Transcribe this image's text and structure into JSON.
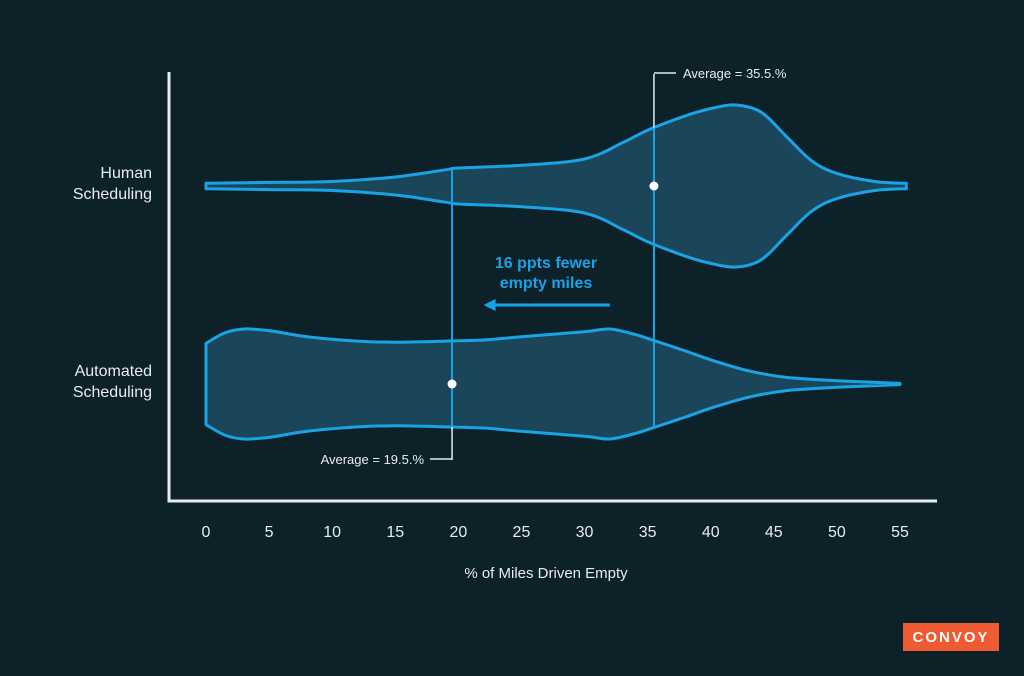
{
  "chart_data": {
    "type": "violin",
    "xlabel": "% of Miles Driven Empty",
    "xlim": [
      0,
      55
    ],
    "x_ticks": [
      0,
      5,
      10,
      15,
      20,
      25,
      30,
      35,
      40,
      45,
      50,
      55
    ],
    "categories": [
      {
        "name": "Human",
        "name2": "Scheduling",
        "average": 35.5,
        "average_label": "Average = 35.5.%",
        "min": 0,
        "max": 55.5,
        "density": [
          [
            0,
            0.03
          ],
          [
            5,
            0.04
          ],
          [
            10,
            0.05
          ],
          [
            15,
            0.1
          ],
          [
            19,
            0.18
          ],
          [
            20,
            0.2
          ],
          [
            25,
            0.23
          ],
          [
            30,
            0.3
          ],
          [
            33,
            0.48
          ],
          [
            35,
            0.62
          ],
          [
            38,
            0.78
          ],
          [
            40,
            0.86
          ],
          [
            42,
            0.9
          ],
          [
            44,
            0.82
          ],
          [
            46,
            0.55
          ],
          [
            48,
            0.28
          ],
          [
            50,
            0.14
          ],
          [
            53,
            0.05
          ],
          [
            55.5,
            0.03
          ]
        ]
      },
      {
        "name": "Automated",
        "name2": "Scheduling",
        "average": 19.5,
        "average_label": "Average = 19.5.%",
        "min": 0,
        "max": 55.5,
        "density": [
          [
            0,
            0.74
          ],
          [
            1.5,
            0.93
          ],
          [
            3,
            1.0
          ],
          [
            5,
            0.97
          ],
          [
            8,
            0.86
          ],
          [
            12,
            0.78
          ],
          [
            15,
            0.76
          ],
          [
            19,
            0.78
          ],
          [
            22,
            0.8
          ],
          [
            25,
            0.86
          ],
          [
            30,
            0.95
          ],
          [
            32,
            1.0
          ],
          [
            34,
            0.9
          ],
          [
            35,
            0.83
          ],
          [
            38,
            0.6
          ],
          [
            40,
            0.44
          ],
          [
            43,
            0.24
          ],
          [
            46,
            0.12
          ],
          [
            50,
            0.06
          ],
          [
            55,
            0.01
          ]
        ]
      }
    ],
    "annotation": {
      "line1": "16 ppts fewer",
      "line2": "empty miles",
      "from": 32,
      "to": 22
    },
    "colors": {
      "background": "#0d2129",
      "violin_fill": "#1b4559",
      "accent": "#1aa3e4",
      "axis": "#e8ecee",
      "text": "#e8ecee"
    }
  },
  "brand": {
    "logo": "CONVOY"
  }
}
